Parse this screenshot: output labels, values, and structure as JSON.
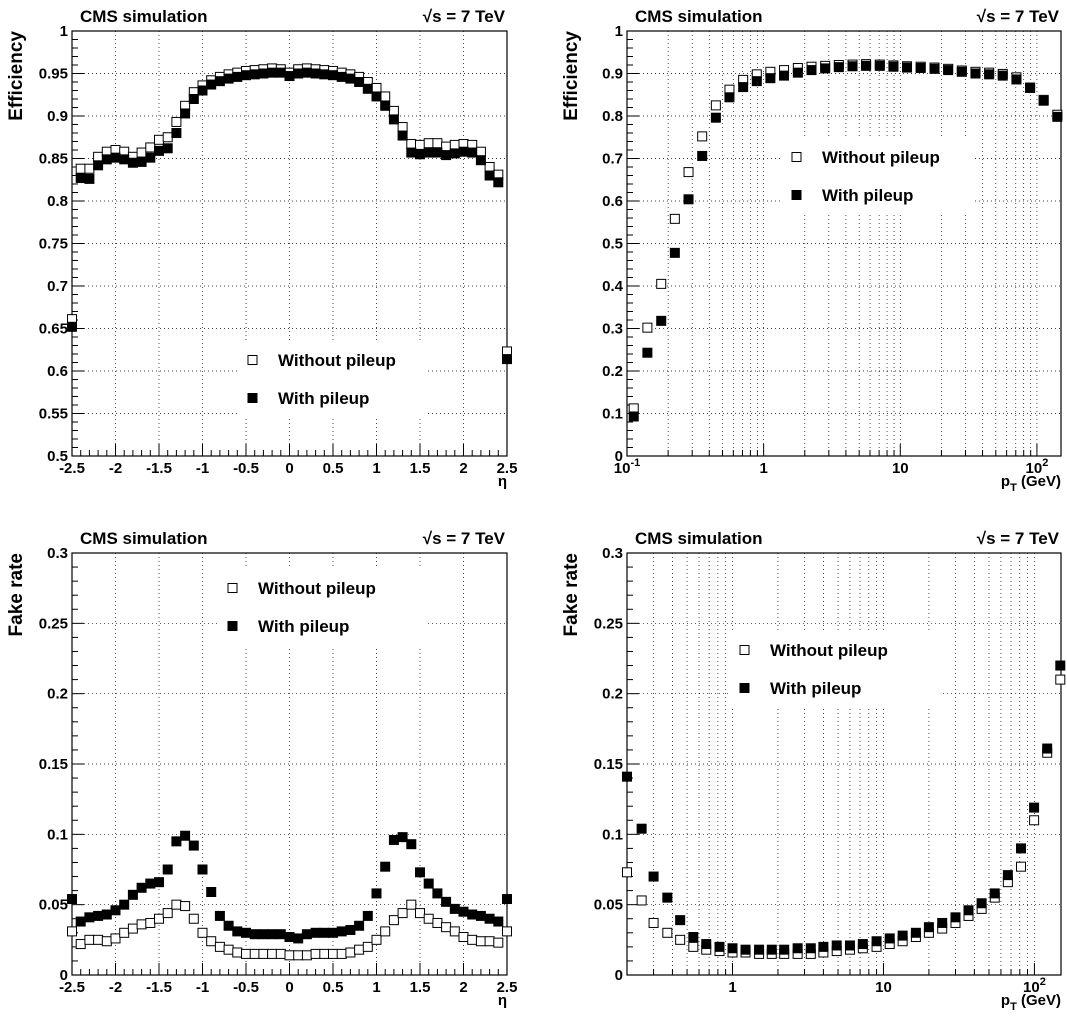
{
  "chart_data": [
    {
      "type": "scatter",
      "header_left": "CMS simulation",
      "header_right": "√s = 7 TeV",
      "ylabel": "Efficiency",
      "xlabel": "η",
      "xscale": "linear",
      "xlim": [
        -2.5,
        2.5
      ],
      "ylim": [
        0.5,
        1.0
      ],
      "xticks": [
        -2.5,
        -2,
        -1.5,
        -1,
        -0.5,
        0,
        0.5,
        1,
        1.5,
        2,
        2.5
      ],
      "xtick_labels": [
        "-2.5",
        "-2",
        "-1.5",
        "-1",
        "-0.5",
        "0",
        "0.5",
        "1",
        "1.5",
        "2",
        "2.5"
      ],
      "yticks": [
        0.5,
        0.55,
        0.6,
        0.65,
        0.7,
        0.75,
        0.8,
        0.85,
        0.9,
        0.95,
        1
      ],
      "ytick_labels": [
        "0.5",
        "0.55",
        "0.6",
        "0.65",
        "0.7",
        "0.75",
        "0.8",
        "0.85",
        "0.9",
        "0.95",
        "1"
      ],
      "grid": true,
      "legend_position": "bottom-center",
      "series": [
        {
          "name": "Without pileup",
          "marker": "open-square",
          "x": [
            -2.5,
            -2.4,
            -2.3,
            -2.2,
            -2.1,
            -2.0,
            -1.9,
            -1.8,
            -1.7,
            -1.6,
            -1.5,
            -1.4,
            -1.3,
            -1.2,
            -1.1,
            -1.0,
            -0.9,
            -0.8,
            -0.7,
            -0.6,
            -0.5,
            -0.4,
            -0.3,
            -0.2,
            -0.1,
            0.0,
            0.1,
            0.2,
            0.3,
            0.4,
            0.5,
            0.6,
            0.7,
            0.8,
            0.9,
            1.0,
            1.1,
            1.2,
            1.3,
            1.4,
            1.5,
            1.6,
            1.7,
            1.8,
            1.9,
            2.0,
            2.1,
            2.2,
            2.3,
            2.4,
            2.5
          ],
          "y": [
            0.661,
            0.838,
            0.838,
            0.852,
            0.858,
            0.86,
            0.858,
            0.852,
            0.857,
            0.863,
            0.872,
            0.875,
            0.893,
            0.912,
            0.928,
            0.936,
            0.942,
            0.946,
            0.949,
            0.951,
            0.953,
            0.954,
            0.955,
            0.956,
            0.955,
            0.951,
            0.955,
            0.956,
            0.955,
            0.954,
            0.953,
            0.951,
            0.949,
            0.946,
            0.94,
            0.933,
            0.923,
            0.906,
            0.887,
            0.867,
            0.866,
            0.868,
            0.868,
            0.864,
            0.866,
            0.867,
            0.866,
            0.858,
            0.84,
            0.831,
            0.623
          ]
        },
        {
          "name": "With pileup",
          "marker": "filled-square",
          "x": [
            -2.5,
            -2.4,
            -2.3,
            -2.2,
            -2.1,
            -2.0,
            -1.9,
            -1.8,
            -1.7,
            -1.6,
            -1.5,
            -1.4,
            -1.3,
            -1.2,
            -1.1,
            -1.0,
            -0.9,
            -0.8,
            -0.7,
            -0.6,
            -0.5,
            -0.4,
            -0.3,
            -0.2,
            -0.1,
            0.0,
            0.1,
            0.2,
            0.3,
            0.4,
            0.5,
            0.6,
            0.7,
            0.8,
            0.9,
            1.0,
            1.1,
            1.2,
            1.3,
            1.4,
            1.5,
            1.6,
            1.7,
            1.8,
            1.9,
            2.0,
            2.1,
            2.2,
            2.3,
            2.4,
            2.5
          ],
          "y": [
            0.652,
            0.827,
            0.826,
            0.842,
            0.849,
            0.851,
            0.849,
            0.845,
            0.846,
            0.851,
            0.859,
            0.862,
            0.88,
            0.903,
            0.92,
            0.93,
            0.937,
            0.941,
            0.944,
            0.946,
            0.948,
            0.949,
            0.95,
            0.951,
            0.951,
            0.947,
            0.95,
            0.951,
            0.95,
            0.949,
            0.948,
            0.946,
            0.944,
            0.94,
            0.932,
            0.923,
            0.912,
            0.896,
            0.877,
            0.857,
            0.855,
            0.857,
            0.857,
            0.854,
            0.856,
            0.858,
            0.857,
            0.848,
            0.83,
            0.822,
            0.614
          ]
        }
      ]
    },
    {
      "type": "scatter",
      "header_left": "CMS simulation",
      "header_right": "√s = 7 TeV",
      "ylabel": "Efficiency",
      "xlabel": "p_T (GeV)",
      "xscale": "log",
      "xlim": [
        0.1,
        150
      ],
      "ylim": [
        0,
        1.0
      ],
      "xticks": [
        0.1,
        1,
        10,
        100
      ],
      "xtick_labels": [
        "10^-1",
        "1",
        "10",
        "10^2"
      ],
      "yticks": [
        0,
        0.1,
        0.2,
        0.3,
        0.4,
        0.5,
        0.6,
        0.7,
        0.8,
        0.9,
        1
      ],
      "ytick_labels": [
        "0",
        "0.1",
        "0.2",
        "0.3",
        "0.4",
        "0.5",
        "0.6",
        "0.7",
        "0.8",
        "0.9",
        "1"
      ],
      "grid": true,
      "legend_position": "center-right",
      "series": [
        {
          "name": "Without pileup",
          "marker": "open-square",
          "x": [
            0.112,
            0.141,
            0.178,
            0.224,
            0.282,
            0.355,
            0.447,
            0.562,
            0.708,
            0.891,
            1.12,
            1.41,
            1.78,
            2.24,
            2.82,
            3.55,
            4.47,
            5.62,
            7.08,
            8.91,
            11.2,
            14.1,
            17.8,
            22.4,
            28.2,
            35.5,
            44.7,
            56.2,
            70.8,
            89.1,
            112,
            141
          ],
          "y": [
            0.112,
            0.302,
            0.405,
            0.558,
            0.668,
            0.752,
            0.825,
            0.862,
            0.885,
            0.898,
            0.904,
            0.908,
            0.913,
            0.916,
            0.918,
            0.92,
            0.921,
            0.922,
            0.921,
            0.919,
            0.917,
            0.916,
            0.914,
            0.911,
            0.907,
            0.904,
            0.902,
            0.899,
            0.891,
            0.867,
            0.838,
            0.803
          ]
        },
        {
          "name": "With pileup",
          "marker": "filled-square",
          "x": [
            0.112,
            0.141,
            0.178,
            0.224,
            0.282,
            0.355,
            0.447,
            0.562,
            0.708,
            0.891,
            1.12,
            1.41,
            1.78,
            2.24,
            2.82,
            3.55,
            4.47,
            5.62,
            7.08,
            8.91,
            11.2,
            14.1,
            17.8,
            22.4,
            28.2,
            35.5,
            44.7,
            56.2,
            70.8,
            89.1,
            112,
            141
          ],
          "y": [
            0.093,
            0.243,
            0.318,
            0.478,
            0.604,
            0.706,
            0.796,
            0.844,
            0.868,
            0.882,
            0.889,
            0.895,
            0.902,
            0.908,
            0.912,
            0.915,
            0.917,
            0.918,
            0.918,
            0.916,
            0.914,
            0.913,
            0.911,
            0.908,
            0.904,
            0.9,
            0.898,
            0.895,
            0.886,
            0.866,
            0.836,
            0.798
          ]
        }
      ]
    },
    {
      "type": "scatter",
      "header_left": "CMS simulation",
      "header_right": "√s = 7 TeV",
      "ylabel": "Fake rate",
      "xlabel": "η",
      "xscale": "linear",
      "xlim": [
        -2.5,
        2.5
      ],
      "ylim": [
        0,
        0.3
      ],
      "xticks": [
        -2.5,
        -2,
        -1.5,
        -1,
        -0.5,
        0,
        0.5,
        1,
        1.5,
        2,
        2.5
      ],
      "xtick_labels": [
        "-2.5",
        "-2",
        "-1.5",
        "-1",
        "-0.5",
        "0",
        "0.5",
        "1",
        "1.5",
        "2",
        "2.5"
      ],
      "yticks": [
        0,
        0.05,
        0.1,
        0.15,
        0.2,
        0.25,
        0.3
      ],
      "ytick_labels": [
        "0",
        "0.05",
        "0.1",
        "0.15",
        "0.2",
        "0.25",
        "0.3"
      ],
      "grid": true,
      "legend_position": "top-center",
      "series": [
        {
          "name": "Without pileup",
          "marker": "open-square",
          "x": [
            -2.5,
            -2.4,
            -2.3,
            -2.2,
            -2.1,
            -2.0,
            -1.9,
            -1.8,
            -1.7,
            -1.6,
            -1.5,
            -1.4,
            -1.3,
            -1.2,
            -1.1,
            -1.0,
            -0.9,
            -0.8,
            -0.7,
            -0.6,
            -0.5,
            -0.4,
            -0.3,
            -0.2,
            -0.1,
            0.0,
            0.1,
            0.2,
            0.3,
            0.4,
            0.5,
            0.6,
            0.7,
            0.8,
            0.9,
            1.0,
            1.1,
            1.2,
            1.3,
            1.4,
            1.5,
            1.6,
            1.7,
            1.8,
            1.9,
            2.0,
            2.1,
            2.2,
            2.3,
            2.4,
            2.5
          ],
          "y": [
            0.031,
            0.022,
            0.025,
            0.025,
            0.024,
            0.026,
            0.03,
            0.033,
            0.036,
            0.037,
            0.04,
            0.044,
            0.05,
            0.049,
            0.04,
            0.03,
            0.024,
            0.02,
            0.018,
            0.016,
            0.015,
            0.015,
            0.015,
            0.015,
            0.015,
            0.014,
            0.014,
            0.014,
            0.015,
            0.015,
            0.015,
            0.015,
            0.016,
            0.018,
            0.02,
            0.025,
            0.031,
            0.039,
            0.044,
            0.05,
            0.044,
            0.04,
            0.037,
            0.034,
            0.031,
            0.027,
            0.025,
            0.024,
            0.024,
            0.023,
            0.031
          ]
        },
        {
          "name": "With pileup",
          "marker": "filled-square",
          "x": [
            -2.5,
            -2.4,
            -2.3,
            -2.2,
            -2.1,
            -2.0,
            -1.9,
            -1.8,
            -1.7,
            -1.6,
            -1.5,
            -1.4,
            -1.3,
            -1.2,
            -1.1,
            -1.0,
            -0.9,
            -0.8,
            -0.7,
            -0.6,
            -0.5,
            -0.4,
            -0.3,
            -0.2,
            -0.1,
            0.0,
            0.1,
            0.2,
            0.3,
            0.4,
            0.5,
            0.6,
            0.7,
            0.8,
            0.9,
            1.0,
            1.1,
            1.2,
            1.3,
            1.4,
            1.5,
            1.6,
            1.7,
            1.8,
            1.9,
            2.0,
            2.1,
            2.2,
            2.3,
            2.4,
            2.5
          ],
          "y": [
            0.054,
            0.038,
            0.041,
            0.042,
            0.043,
            0.046,
            0.05,
            0.057,
            0.062,
            0.065,
            0.066,
            0.075,
            0.095,
            0.099,
            0.092,
            0.075,
            0.059,
            0.042,
            0.035,
            0.031,
            0.03,
            0.029,
            0.029,
            0.029,
            0.029,
            0.027,
            0.026,
            0.029,
            0.03,
            0.03,
            0.03,
            0.031,
            0.032,
            0.035,
            0.042,
            0.058,
            0.077,
            0.096,
            0.098,
            0.093,
            0.073,
            0.065,
            0.058,
            0.052,
            0.047,
            0.045,
            0.043,
            0.042,
            0.04,
            0.038,
            0.054
          ]
        }
      ]
    },
    {
      "type": "scatter",
      "header_left": "CMS simulation",
      "header_right": "√s = 7 TeV",
      "ylabel": "Fake rate",
      "xlabel": "p_T (GeV)",
      "xscale": "log",
      "xlim": [
        0.2,
        150
      ],
      "ylim": [
        0,
        0.3
      ],
      "xticks": [
        1,
        10,
        100
      ],
      "xtick_labels": [
        "1",
        "10",
        "10^2"
      ],
      "yticks": [
        0,
        0.05,
        0.1,
        0.15,
        0.2,
        0.25,
        0.3
      ],
      "ytick_labels": [
        "0",
        "0.05",
        "0.1",
        "0.15",
        "0.2",
        "0.25",
        "0.3"
      ],
      "grid": true,
      "legend_position": "center",
      "series": [
        {
          "name": "Without pileup",
          "marker": "open-square",
          "x": [
            0.2,
            0.25,
            0.3,
            0.37,
            0.45,
            0.55,
            0.67,
            0.82,
            1.0,
            1.22,
            1.5,
            1.82,
            2.2,
            2.7,
            3.3,
            4.0,
            4.9,
            6.0,
            7.3,
            9.0,
            11.0,
            13.4,
            16.4,
            20.0,
            24.5,
            30.0,
            36.6,
            44.7,
            54.6,
            66.7,
            81.5,
            99.5,
            121.5,
            148.4
          ],
          "y": [
            0.073,
            0.053,
            0.037,
            0.03,
            0.025,
            0.02,
            0.018,
            0.017,
            0.016,
            0.016,
            0.015,
            0.015,
            0.015,
            0.015,
            0.015,
            0.016,
            0.017,
            0.018,
            0.019,
            0.02,
            0.022,
            0.024,
            0.027,
            0.03,
            0.033,
            0.037,
            0.042,
            0.047,
            0.055,
            0.066,
            0.077,
            0.11,
            0.158,
            0.21
          ]
        },
        {
          "name": "With pileup",
          "marker": "filled-square",
          "x": [
            0.2,
            0.25,
            0.3,
            0.37,
            0.45,
            0.55,
            0.67,
            0.82,
            1.0,
            1.22,
            1.5,
            1.82,
            2.2,
            2.7,
            3.3,
            4.0,
            4.9,
            6.0,
            7.3,
            9.0,
            11.0,
            13.4,
            16.4,
            20.0,
            24.5,
            30.0,
            36.6,
            44.7,
            54.6,
            66.7,
            81.5,
            99.5,
            121.5,
            148.4
          ],
          "y": [
            0.141,
            0.104,
            0.07,
            0.055,
            0.039,
            0.027,
            0.022,
            0.02,
            0.019,
            0.018,
            0.018,
            0.018,
            0.018,
            0.019,
            0.019,
            0.02,
            0.021,
            0.021,
            0.022,
            0.024,
            0.026,
            0.028,
            0.03,
            0.034,
            0.037,
            0.041,
            0.046,
            0.051,
            0.058,
            0.071,
            0.09,
            0.119,
            0.161,
            0.22
          ]
        }
      ]
    }
  ]
}
